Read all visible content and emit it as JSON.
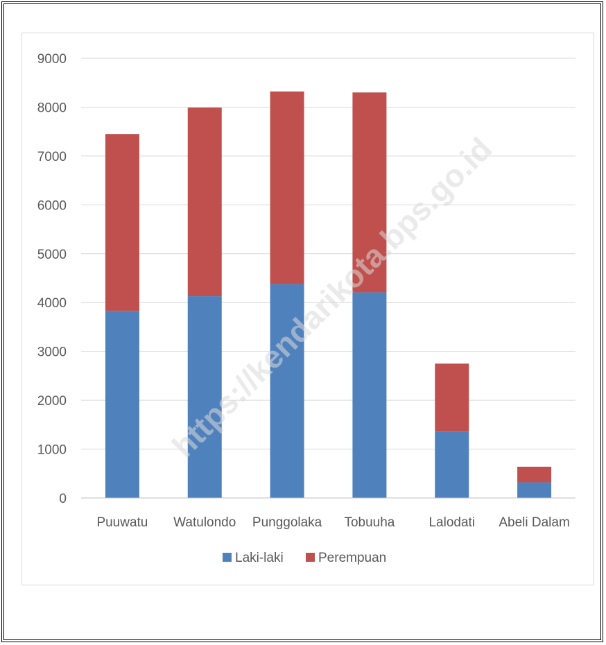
{
  "chart_data": {
    "type": "bar",
    "stacked": true,
    "categories": [
      "Puuwatu",
      "Watulondo",
      "Punggolaka",
      "Tobuuha",
      "Lalodati",
      "Abeli Dalam"
    ],
    "series": [
      {
        "name": "Laki-laki",
        "color": "#4f81bd",
        "values": [
          3830,
          4130,
          4380,
          4210,
          1360,
          320
        ]
      },
      {
        "name": "Perempuan",
        "color": "#c0504d",
        "values": [
          3620,
          3860,
          3940,
          4090,
          1390,
          320
        ]
      }
    ],
    "ylim": [
      0,
      9000
    ],
    "yticks": [
      0,
      1000,
      2000,
      3000,
      4000,
      5000,
      6000,
      7000,
      8000,
      9000
    ],
    "grid": true,
    "legend_position": "bottom",
    "watermark": "https://kendarikota.bps.go.id"
  }
}
